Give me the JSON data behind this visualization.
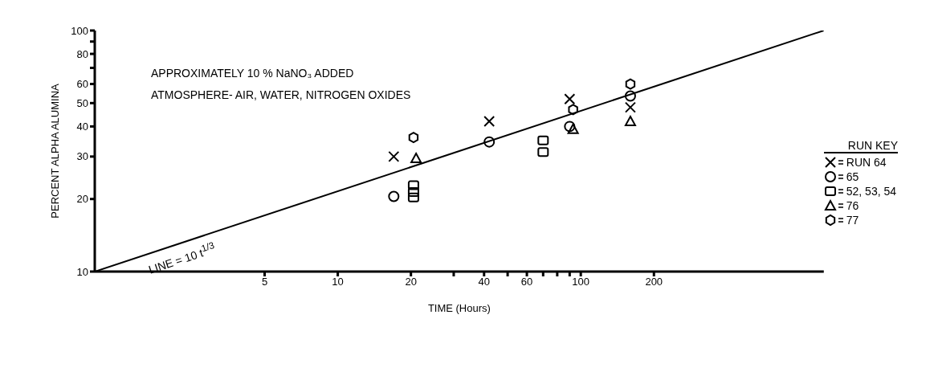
{
  "chart_data": {
    "type": "scatter",
    "xlabel": "TIME (Hours)",
    "ylabel": "PERCENT ALPHA ALUMINA",
    "log": "xy",
    "grid": false,
    "legend": "right",
    "legend_title": "RUN KEY",
    "xlim": [
      1,
      1000
    ],
    "xticks": [
      5,
      10,
      20,
      {
        "value": 30,
        "label": null
      },
      40,
      {
        "value": 50,
        "label": null
      },
      60,
      {
        "value": 70,
        "label": null
      },
      {
        "value": 80,
        "label": null
      },
      {
        "value": 90,
        "label": null
      },
      100,
      200
    ],
    "ylim": [
      10,
      100
    ],
    "yticks": [
      10,
      20,
      30,
      40,
      50,
      60,
      {
        "value": 70,
        "label": null
      },
      80,
      {
        "value": 90,
        "label": null
      },
      100
    ],
    "annotations": [
      "APPROXIMATELY 10 % NaNO₃ ADDED",
      "ATMOSPHERE- AIR, WATER, NITROGEN OXIDES",
      "LINE = 10 t$^{1/3}$"
    ],
    "series": [
      {
        "name": "RUN 64",
        "color": "#000000",
        "marker": "cross",
        "x": [
          17,
          42,
          90,
          160
        ],
        "values": [
          30,
          42,
          52,
          48
        ]
      },
      {
        "name": "65",
        "color": "#000000",
        "marker": "circle",
        "x": [
          17,
          42,
          90,
          160
        ],
        "values": [
          20.5,
          34.5,
          40,
          53.5
        ]
      },
      {
        "name": "52, 53, 54",
        "color": "#000000",
        "marker": "square",
        "x": [
          20.5,
          20.5,
          20.5,
          70,
          70
        ],
        "values": [
          20.3,
          21.4,
          22.8,
          31.3,
          35
        ]
      },
      {
        "name": "76",
        "color": "#000000",
        "marker": "triangle",
        "x": [
          21,
          93,
          160
        ],
        "values": [
          29.5,
          39,
          42
        ]
      },
      {
        "name": "77",
        "color": "#000000",
        "x": [
          20.5,
          93,
          160
        ],
        "values": [
          36,
          47,
          60
        ]
      },
      {
        "type": "line",
        "color": "#000000",
        "marker": "none",
        "line_style": "solid",
        "x": [
          1,
          1000
        ],
        "values": [
          10,
          100
        ]
      }
    ]
  }
}
